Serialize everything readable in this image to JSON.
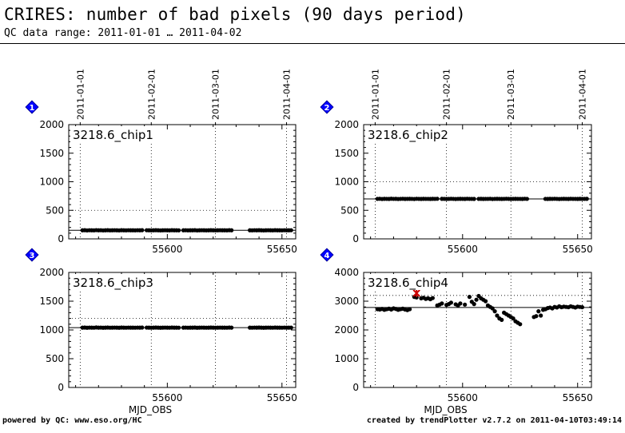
{
  "header": {
    "title": "CRIRES: number of bad pixels (90 days period)",
    "subtitle": "QC data range: 2011-01-01 … 2011-04-02"
  },
  "footer": {
    "left": "powered by QC: www.eso.org/HC",
    "right": "created by trendPlotter v2.7.2 on 2011-04-10T03:49:14"
  },
  "colors": {
    "marker": "#0000ff",
    "outlier": "#cc0000",
    "points": "#000000"
  },
  "chart_data": [
    {
      "type": "scatter",
      "index_label": "1",
      "label": "3218.6_chip1",
      "xlabel": "",
      "ylim": [
        0,
        2000
      ],
      "yticks": [
        0,
        500,
        1000,
        1500,
        2000
      ],
      "xlim": [
        55557,
        55656
      ],
      "xticks": [
        55600,
        55650
      ],
      "date_ticks": [
        "2011-01-01",
        "2011-02-01",
        "2011-03-01",
        "2011-04-01"
      ],
      "median": 150,
      "threshold_upper": 500,
      "segments": [
        {
          "x0": 55563,
          "x1": 55589,
          "y": [
            150,
            152,
            148,
            151,
            150,
            149,
            153,
            150,
            151,
            148,
            150,
            152,
            149,
            150,
            151,
            150,
            148,
            152,
            150,
            149,
            151,
            150,
            150,
            149,
            151,
            150,
            152
          ]
        },
        {
          "x0": 55591,
          "x1": 55605,
          "y": [
            151,
            150,
            149,
            150,
            152,
            150,
            148,
            150,
            151,
            150,
            149,
            152,
            150,
            150,
            149
          ]
        },
        {
          "x0": 55607,
          "x1": 55628,
          "y": [
            150,
            151,
            149,
            150,
            150,
            152,
            148,
            150,
            151,
            150,
            149,
            150,
            152,
            150,
            149,
            150,
            151,
            150,
            150,
            149,
            152,
            150
          ]
        },
        {
          "x0": 55636,
          "x1": 55654,
          "y": [
            150,
            149,
            151,
            150,
            152,
            150,
            148,
            150,
            151,
            150,
            149,
            152,
            150,
            150,
            149,
            151,
            150,
            150,
            151
          ]
        }
      ]
    },
    {
      "type": "scatter",
      "index_label": "2",
      "label": "3218.6_chip2",
      "xlabel": "",
      "ylim": [
        0,
        2000
      ],
      "yticks": [
        0,
        500,
        1000,
        1500,
        2000
      ],
      "xlim": [
        55557,
        55656
      ],
      "xticks": [
        55600,
        55650
      ],
      "date_ticks": [
        "2011-01-01",
        "2011-02-01",
        "2011-03-01",
        "2011-04-01"
      ],
      "median": 700,
      "threshold_upper": 1000,
      "segments": [
        {
          "x0": 55563,
          "x1": 55589,
          "y": [
            700,
            702,
            698,
            701,
            700,
            699,
            703,
            700,
            701,
            698,
            700,
            702,
            699,
            700,
            701,
            700,
            698,
            702,
            700,
            699,
            701,
            700,
            700,
            699,
            701,
            700,
            702
          ]
        },
        {
          "x0": 55591,
          "x1": 55605,
          "y": [
            701,
            700,
            699,
            700,
            702,
            700,
            698,
            700,
            701,
            700,
            699,
            702,
            700,
            700,
            699
          ]
        },
        {
          "x0": 55607,
          "x1": 55628,
          "y": [
            700,
            701,
            699,
            700,
            700,
            702,
            698,
            700,
            701,
            700,
            699,
            700,
            702,
            700,
            699,
            700,
            701,
            700,
            700,
            699,
            702,
            700
          ]
        },
        {
          "x0": 55636,
          "x1": 55654,
          "y": [
            700,
            699,
            701,
            700,
            702,
            700,
            698,
            700,
            701,
            700,
            699,
            702,
            700,
            700,
            699,
            701,
            700,
            700,
            701
          ]
        }
      ]
    },
    {
      "type": "scatter",
      "index_label": "3",
      "label": "3218.6_chip3",
      "xlabel": "MJD_OBS",
      "ylim": [
        0,
        2000
      ],
      "yticks": [
        0,
        500,
        1000,
        1500,
        2000
      ],
      "xlim": [
        55557,
        55656
      ],
      "xticks": [
        55600,
        55650
      ],
      "date_ticks": [],
      "median": 1040,
      "threshold_upper": 1200,
      "segments": [
        {
          "x0": 55563,
          "x1": 55589,
          "y": [
            1040,
            1042,
            1038,
            1041,
            1040,
            1039,
            1043,
            1040,
            1041,
            1038,
            1040,
            1042,
            1039,
            1040,
            1041,
            1040,
            1038,
            1042,
            1040,
            1039,
            1041,
            1040,
            1040,
            1039,
            1041,
            1040,
            1042
          ]
        },
        {
          "x0": 55591,
          "x1": 55605,
          "y": [
            1041,
            1040,
            1039,
            1040,
            1042,
            1040,
            1038,
            1040,
            1041,
            1040,
            1039,
            1042,
            1040,
            1040,
            1039
          ]
        },
        {
          "x0": 55607,
          "x1": 55628,
          "y": [
            1040,
            1041,
            1039,
            1040,
            1040,
            1042,
            1038,
            1040,
            1041,
            1040,
            1039,
            1040,
            1042,
            1040,
            1039,
            1040,
            1041,
            1040,
            1040,
            1039,
            1042,
            1040
          ]
        },
        {
          "x0": 55636,
          "x1": 55654,
          "y": [
            1040,
            1039,
            1041,
            1040,
            1042,
            1040,
            1038,
            1040,
            1041,
            1040,
            1039,
            1042,
            1040,
            1040,
            1039,
            1041,
            1040,
            1040,
            1041
          ]
        }
      ]
    },
    {
      "type": "scatter",
      "index_label": "4",
      "label": "3218.6_chip4",
      "xlabel": "MJD_OBS",
      "ylim": [
        0,
        4000
      ],
      "yticks": [
        0,
        1000,
        2000,
        3000,
        4000
      ],
      "xlim": [
        55557,
        55656
      ],
      "xticks": [
        55600,
        55650
      ],
      "date_ticks": [],
      "median": 2780,
      "threshold_upper": 3200,
      "points": [
        [
          55563,
          2720
        ],
        [
          55564,
          2710
        ],
        [
          55565,
          2730
        ],
        [
          55566,
          2700
        ],
        [
          55567,
          2720
        ],
        [
          55568,
          2740
        ],
        [
          55569,
          2710
        ],
        [
          55570,
          2750
        ],
        [
          55571,
          2730
        ],
        [
          55572,
          2700
        ],
        [
          55573,
          2720
        ],
        [
          55574,
          2740
        ],
        [
          55575,
          2710
        ],
        [
          55576,
          2690
        ],
        [
          55577,
          2720
        ],
        [
          55579,
          3150
        ],
        [
          55580,
          3130
        ],
        [
          55582,
          3100
        ],
        [
          55583,
          3120
        ],
        [
          55584,
          3080
        ],
        [
          55585,
          3100
        ],
        [
          55586,
          3070
        ],
        [
          55587,
          3110
        ],
        [
          55589,
          2850
        ],
        [
          55590,
          2880
        ],
        [
          55591,
          2920
        ],
        [
          55593,
          2870
        ],
        [
          55594,
          2900
        ],
        [
          55595,
          2950
        ],
        [
          55597,
          2890
        ],
        [
          55598,
          2850
        ],
        [
          55599,
          2920
        ],
        [
          55601,
          2880
        ],
        [
          55603,
          3150
        ],
        [
          55604,
          2980
        ],
        [
          55605,
          2900
        ],
        [
          55606,
          3050
        ],
        [
          55607,
          3180
        ],
        [
          55608,
          3100
        ],
        [
          55609,
          3050
        ],
        [
          55610,
          3000
        ],
        [
          55611,
          2850
        ],
        [
          55612,
          2800
        ],
        [
          55613,
          2750
        ],
        [
          55614,
          2650
        ],
        [
          55615,
          2500
        ],
        [
          55616,
          2400
        ],
        [
          55617,
          2350
        ],
        [
          55618,
          2600
        ],
        [
          55619,
          2550
        ],
        [
          55620,
          2500
        ],
        [
          55621,
          2450
        ],
        [
          55622,
          2400
        ],
        [
          55623,
          2300
        ],
        [
          55624,
          2250
        ],
        [
          55625,
          2200
        ],
        [
          55631,
          2450
        ],
        [
          55632,
          2480
        ],
        [
          55633,
          2650
        ],
        [
          55634,
          2500
        ],
        [
          55635,
          2700
        ],
        [
          55636,
          2720
        ],
        [
          55637,
          2760
        ],
        [
          55638,
          2780
        ],
        [
          55639,
          2750
        ],
        [
          55640,
          2800
        ],
        [
          55641,
          2780
        ],
        [
          55642,
          2820
        ],
        [
          55643,
          2790
        ],
        [
          55644,
          2810
        ],
        [
          55645,
          2800
        ],
        [
          55646,
          2790
        ],
        [
          55647,
          2820
        ],
        [
          55648,
          2800
        ],
        [
          55649,
          2780
        ],
        [
          55650,
          2810
        ],
        [
          55651,
          2800
        ],
        [
          55652,
          2790
        ]
      ],
      "outliers": [
        [
          55580,
          3280
        ]
      ]
    }
  ]
}
